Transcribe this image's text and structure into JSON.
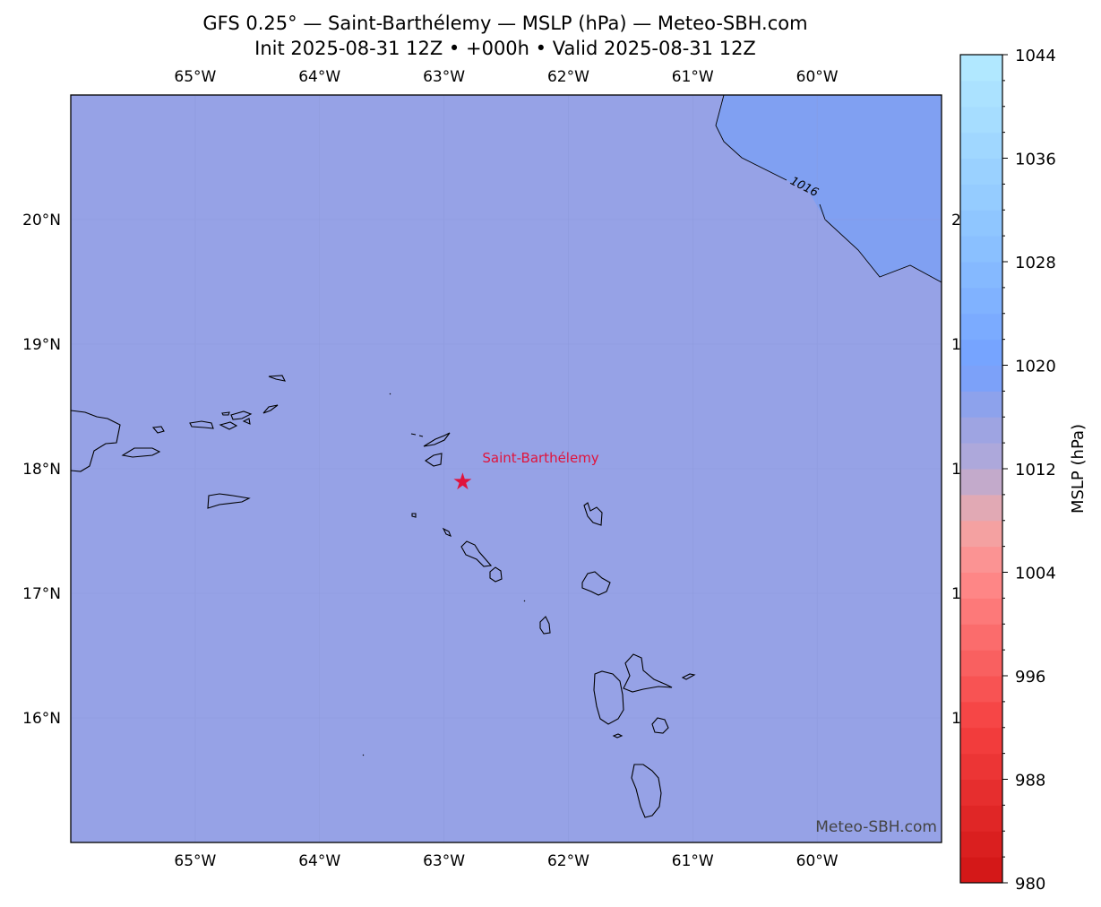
{
  "title": {
    "line1": "GFS 0.25° — Saint-Barthélemy — MSLP (hPa) — Meteo-SBH.com",
    "line2": "Init 2025-08-31 12Z • +000h • Valid 2025-08-31 12Z"
  },
  "map": {
    "extent": {
      "lon_min": -66.0,
      "lon_max": -59.0,
      "lat_min": 15.0,
      "lat_max": 21.0
    },
    "lon_ticks": [
      {
        "value": -65,
        "label": "65°W"
      },
      {
        "value": -64,
        "label": "64°W"
      },
      {
        "value": -63,
        "label": "63°W"
      },
      {
        "value": -62,
        "label": "62°W"
      },
      {
        "value": -61,
        "label": "61°W"
      },
      {
        "value": -60,
        "label": "60°W"
      }
    ],
    "lat_ticks": [
      {
        "value": 20,
        "label": "20°N"
      },
      {
        "value": 19,
        "label": "19°N"
      },
      {
        "value": 18,
        "label": "18°N"
      },
      {
        "value": 17,
        "label": "17°N"
      },
      {
        "value": 16,
        "label": "16°N"
      }
    ],
    "right_tick_stub": "1",
    "right_tick_stub_20": "2",
    "background_color": "#96a2e6",
    "high_region_color": "#80a0f2",
    "contour_label": "1016",
    "marker": {
      "name": "Saint-Barthélemy",
      "lon": -62.85,
      "lat": 17.9,
      "color": "#e0143c"
    },
    "watermark": "Meteo-SBH.com"
  },
  "colorbar": {
    "label": "MSLP (hPa)",
    "min": 980,
    "max": 1044,
    "step": 2,
    "tick_labels": [
      "1044",
      "1036",
      "1028",
      "1020",
      "1012",
      "1004",
      "996",
      "988",
      "980"
    ],
    "tick_values": [
      1044,
      1036,
      1028,
      1020,
      1012,
      1004,
      996,
      988,
      980
    ]
  }
}
